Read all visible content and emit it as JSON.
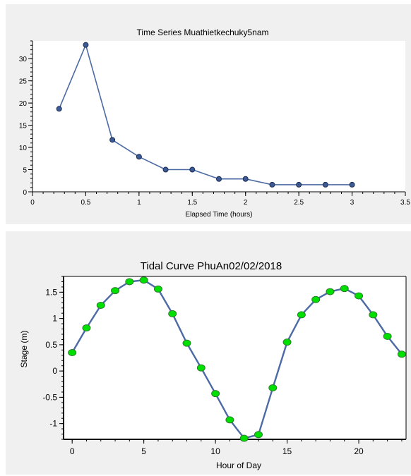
{
  "chart_data": [
    {
      "type": "line",
      "title": "Time Series Muathietkechuky5nam",
      "xlabel": "Elapsed Time (hours)",
      "ylabel": "",
      "xlim": [
        0,
        3.5
      ],
      "ylim": [
        0,
        34
      ],
      "xticks": [
        0,
        0.5,
        1,
        1.5,
        2,
        2.5,
        3,
        3.5
      ],
      "xtick_labels": [
        "0",
        "0.5",
        "1",
        "1.5",
        "2",
        "2.5",
        "3",
        "3.5"
      ],
      "yticks": [
        0,
        5,
        10,
        15,
        20,
        25,
        30
      ],
      "ytick_labels": [
        "0",
        "5",
        "10",
        "15",
        "20",
        "25",
        "30"
      ],
      "grid": false,
      "line_color": "#4c6aa4",
      "marker_color": "#3c5a94",
      "series": [
        {
          "x": [
            0.25,
            0.5,
            0.75,
            1.0,
            1.25,
            1.5,
            1.75,
            2.0,
            2.25,
            2.5,
            2.75,
            3.0
          ],
          "y": [
            18.7,
            33.1,
            11.7,
            7.9,
            5.0,
            5.0,
            2.9,
            2.9,
            1.6,
            1.6,
            1.6,
            1.6
          ]
        }
      ]
    },
    {
      "type": "line",
      "title": "Tidal Curve PhuAn02/02/2018",
      "xlabel": "Hour of Day",
      "ylabel": "Stage (m)",
      "xlim": [
        -0.6,
        23.3
      ],
      "ylim": [
        -1.3,
        1.8
      ],
      "xticks": [
        0,
        5,
        10,
        15,
        20
      ],
      "xtick_labels": [
        "0",
        "5",
        "10",
        "15",
        "20"
      ],
      "yticks": [
        -1,
        -0.5,
        0,
        0.5,
        1,
        1.5
      ],
      "ytick_labels": [
        "-1",
        "-0.5",
        "0",
        "0.5",
        "1",
        "1.5"
      ],
      "grid": false,
      "line_color": "#4c6aa4",
      "marker_color": "#00e000",
      "series": [
        {
          "x": [
            0,
            1,
            2,
            3,
            4,
            5,
            6,
            7,
            8,
            9,
            10,
            11,
            12,
            13,
            14,
            15,
            16,
            17,
            18,
            19,
            20,
            21,
            22,
            23
          ],
          "y": [
            0.35,
            0.82,
            1.25,
            1.53,
            1.7,
            1.73,
            1.56,
            1.09,
            0.53,
            0.06,
            -0.43,
            -0.93,
            -1.28,
            -1.21,
            -0.32,
            0.55,
            1.07,
            1.36,
            1.51,
            1.57,
            1.43,
            1.07,
            0.66,
            0.32
          ]
        }
      ]
    }
  ]
}
